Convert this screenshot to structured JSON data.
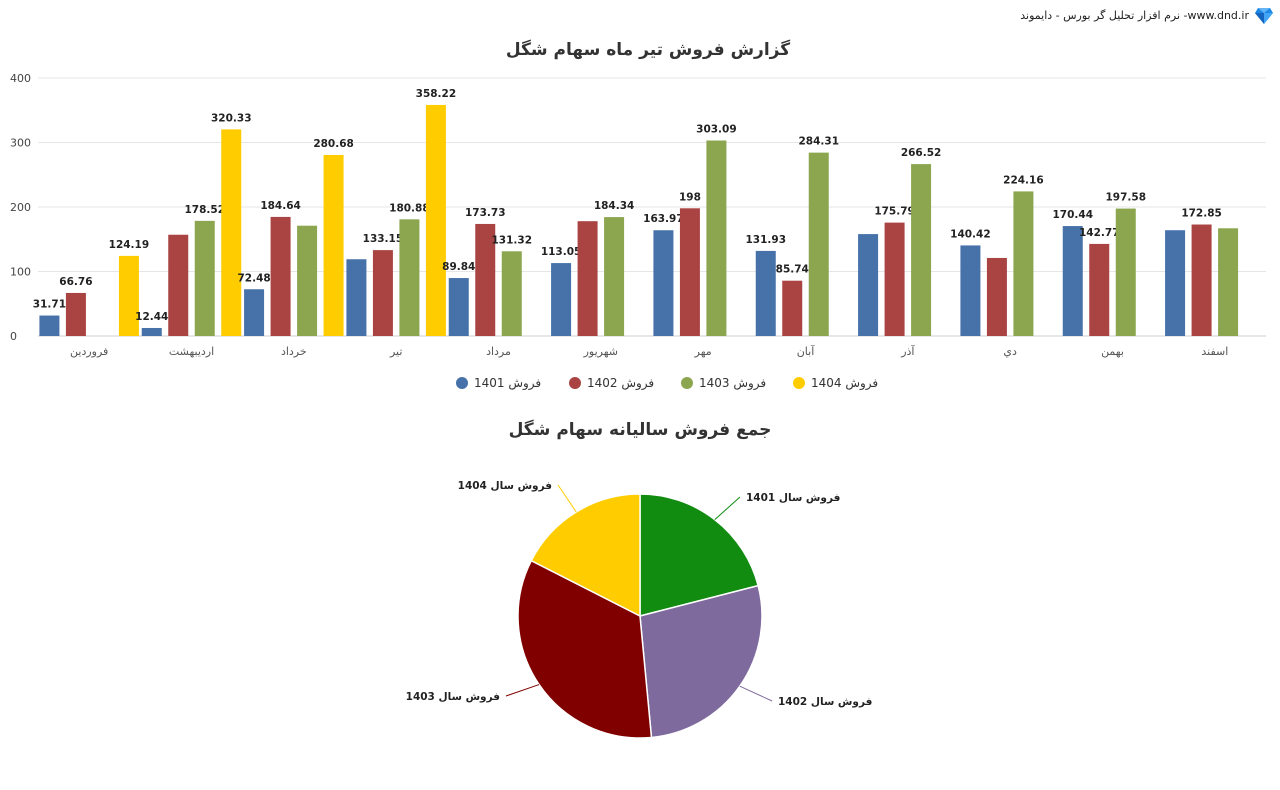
{
  "brand": {
    "text": "نرم افزار تحلیل گر بورس - دایموند -www.dnd.ir",
    "icon": "diamond-icon"
  },
  "chart_data": [
    {
      "type": "bar",
      "title": "گزارش فروش تیر ماه سهام شگل",
      "categories": [
        "فروردین",
        "اردیبهشت",
        "خرداد",
        "تیر",
        "مرداد",
        "شهریور",
        "مهر",
        "آبان",
        "آذر",
        "دي",
        "بهمن",
        "اسفند"
      ],
      "ylim": [
        0,
        400
      ],
      "yticks": [
        0,
        100,
        200,
        300,
        400
      ],
      "grid": true,
      "legend_position": "bottom",
      "series": [
        {
          "name": "فروش 1401",
          "color": "#4671a9",
          "values": [
            31.71,
            12.44,
            72.48,
            119,
            89.84,
            113.05,
            163.97,
            131.93,
            158,
            140.42,
            170.44,
            164
          ],
          "labels": [
            "31.71",
            "12.44",
            "72.48",
            "",
            "89.84",
            "113.05",
            "163.97",
            "131.93",
            "",
            "140.42",
            "170.44",
            ""
          ]
        },
        {
          "name": "فروش 1402",
          "color": "#a94442",
          "values": [
            66.76,
            157,
            184.64,
            133.15,
            173.73,
            178,
            198,
            85.74,
            175.79,
            121,
            142.77,
            172.85
          ],
          "labels": [
            "66.76",
            "",
            "184.64",
            "133.15",
            "173.73",
            "",
            "198",
            "85.74",
            "175.79",
            "",
            "142.77",
            "172.85"
          ]
        },
        {
          "name": "فروش 1403",
          "color": "#8ba64f",
          "values": [
            null,
            178.52,
            171,
            180.88,
            131.32,
            184.34,
            303.09,
            284.31,
            266.52,
            224.16,
            197.58,
            167
          ],
          "labels": [
            "",
            "178.52",
            "",
            "180.88",
            "131.32",
            "184.34",
            "303.09",
            "284.31",
            "266.52",
            "224.16",
            "197.58",
            ""
          ]
        },
        {
          "name": "فروش 1404",
          "color": "#ffcc00",
          "values": [
            124.19,
            320.33,
            280.68,
            358.22,
            null,
            null,
            null,
            null,
            null,
            null,
            null,
            null
          ],
          "labels": [
            "124.19",
            "320.33",
            "280.68",
            "358.22",
            "",
            "",
            "",
            "",
            "",
            "",
            "",
            ""
          ]
        }
      ]
    },
    {
      "type": "pie",
      "title": "جمع فروش سالیانه سهام شگل",
      "slices": [
        {
          "name": "فروش سال 1401",
          "value": 21,
          "color": "#118c11"
        },
        {
          "name": "فروش سال 1402",
          "value": 27.5,
          "color": "#7e6a9c"
        },
        {
          "name": "فروش سال 1403",
          "value": 34,
          "color": "#800000"
        },
        {
          "name": "فروش سال 1404",
          "value": 17.5,
          "color": "#ffcc00"
        }
      ]
    }
  ]
}
